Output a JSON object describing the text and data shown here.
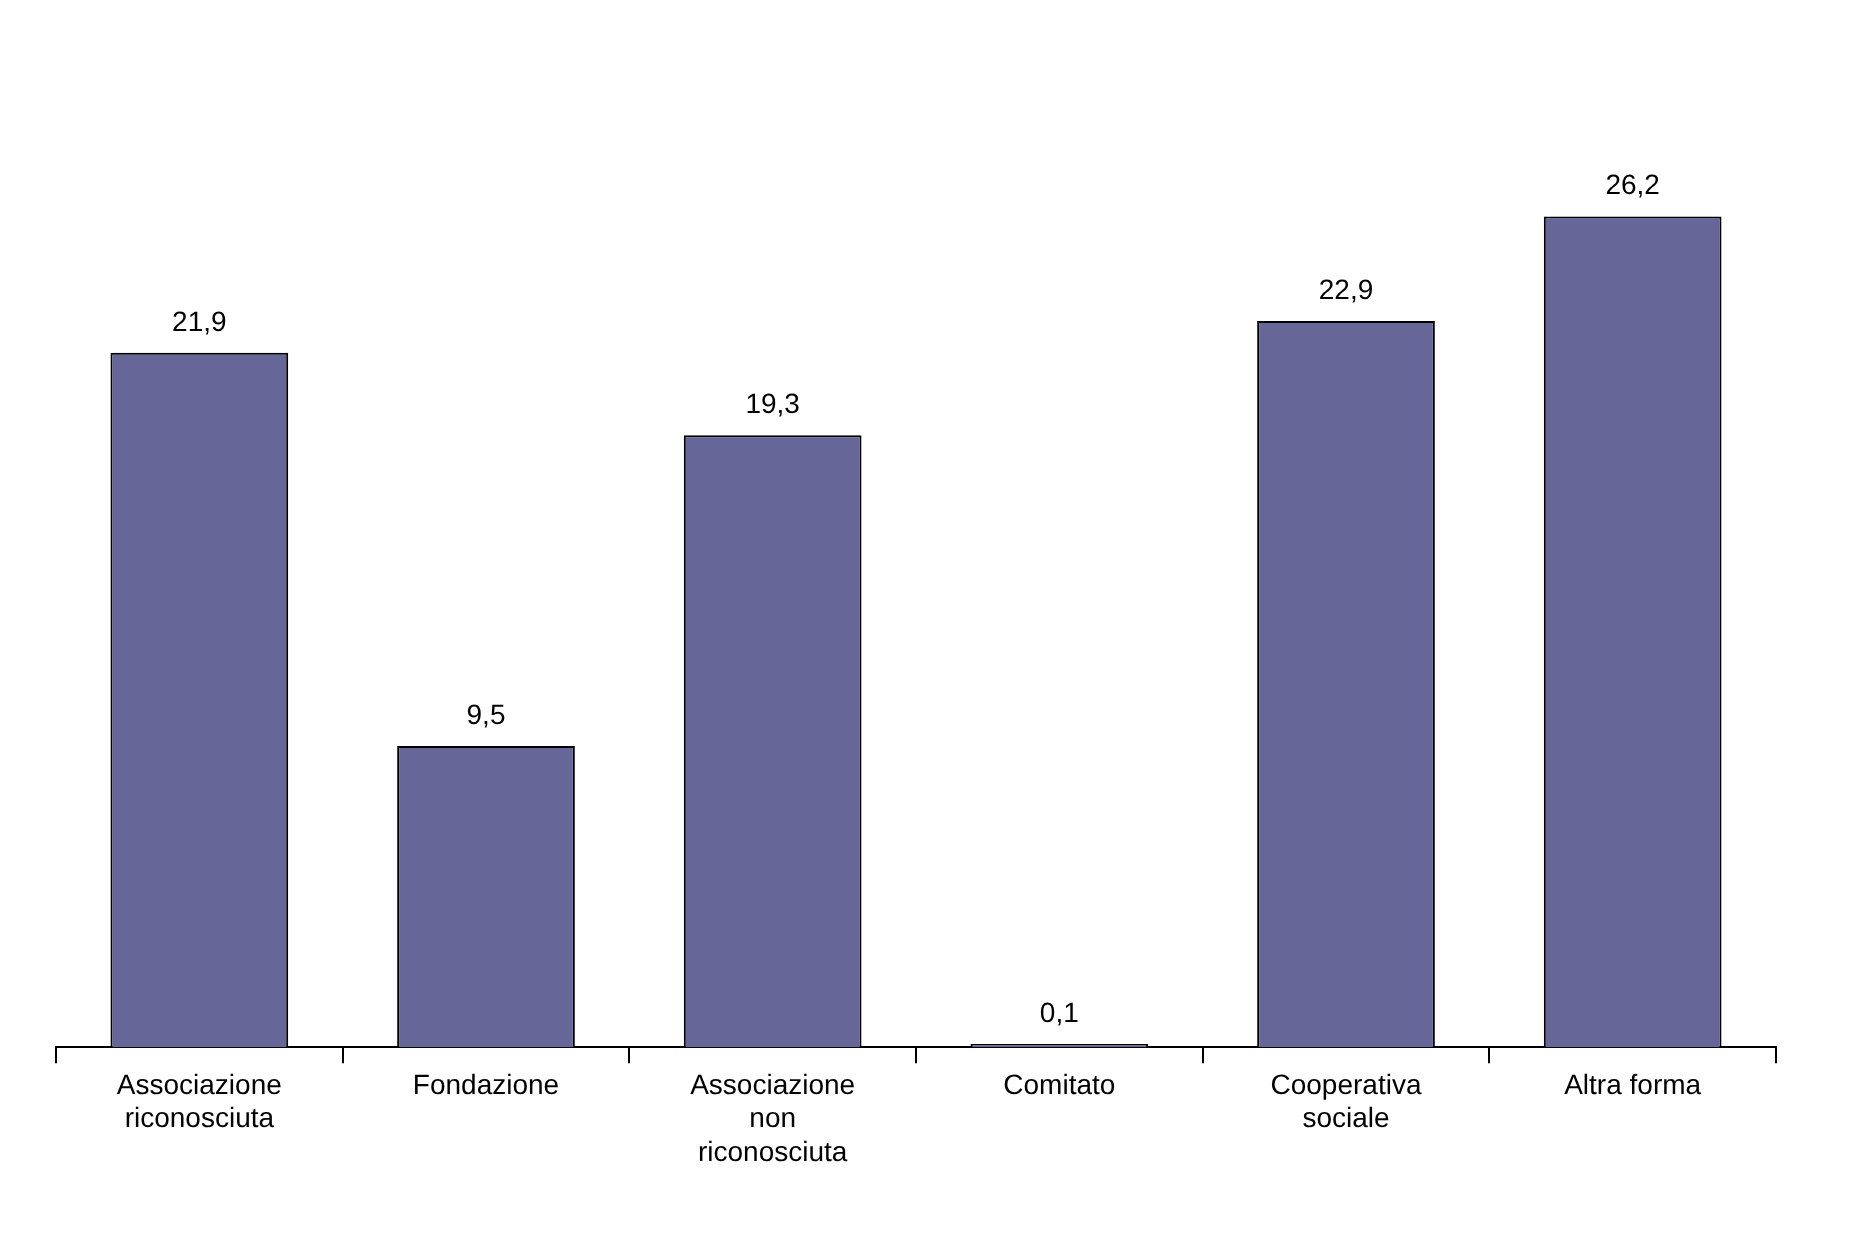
{
  "chart_data": {
    "type": "bar",
    "categories": [
      "Associazione riconosciuta",
      "Fondazione",
      "Associazione non riconosciuta",
      "Comitato",
      "Cooperativa sociale",
      "Altra forma"
    ],
    "values": [
      21.9,
      9.5,
      19.3,
      0.1,
      22.9,
      26.2
    ],
    "color": "#666699",
    "value_labels": [
      "21,9",
      "9,5",
      "19,3",
      "0,1",
      "22,9",
      "26,2"
    ],
    "grid": false,
    "legend": false
  }
}
